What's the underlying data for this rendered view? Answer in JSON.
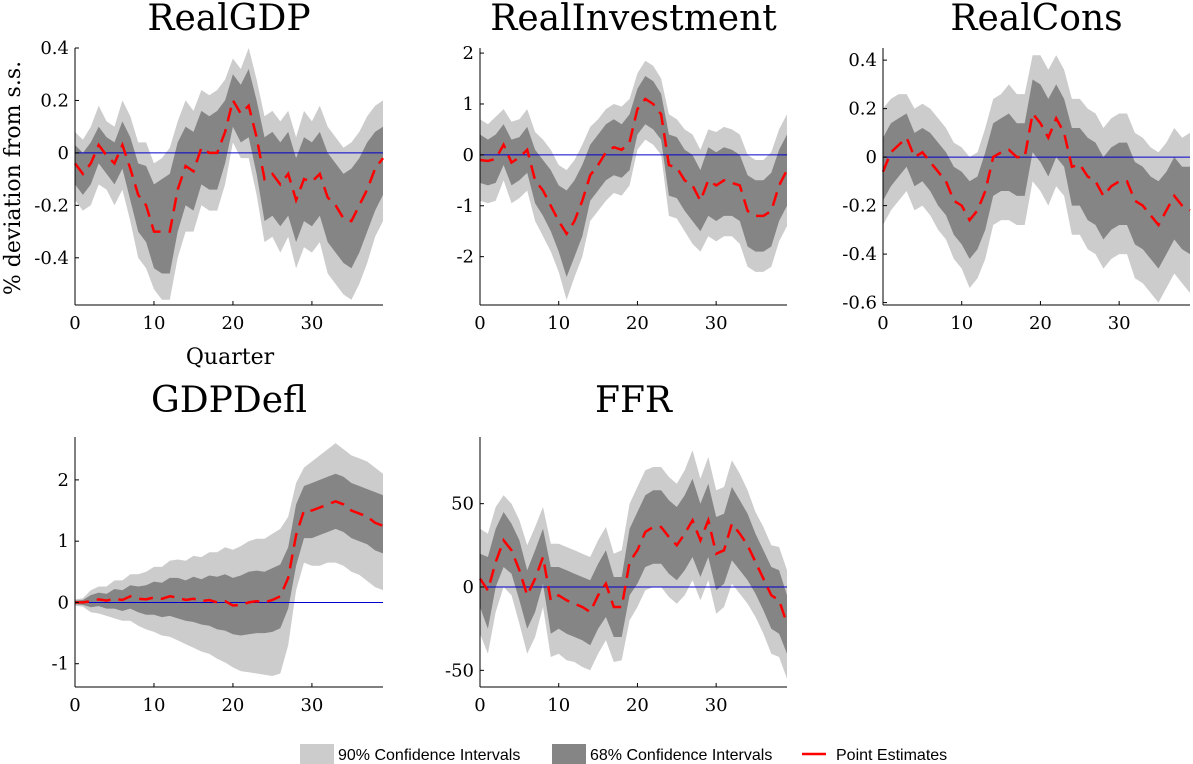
{
  "figure": {
    "ylabel": "% deviation from s.s.",
    "xlabel": "Quarter"
  },
  "legend": {
    "items": [
      {
        "label": "90% Confidence Intervals",
        "color": "#cccccc"
      },
      {
        "label": "68% Confidence Intervals",
        "color": "#858585"
      },
      {
        "label": "Point Estimates",
        "color": "#ff0000"
      }
    ]
  },
  "colors": {
    "band90": "#cccccc",
    "band68": "#858585",
    "point": "#ff0000",
    "zero_line": "#0000cc",
    "axis": "#000000"
  },
  "chart_data": [
    {
      "type": "area",
      "title": "RealGDP",
      "xlim": [
        0,
        39
      ],
      "ylim": [
        -0.58,
        0.4
      ],
      "xticks": [
        0,
        10,
        20,
        30
      ],
      "yticks": [
        0.4,
        0.2,
        0,
        -0.2,
        -0.4
      ],
      "ytick_labels": [
        "0.4",
        "0.2",
        "0",
        "-0.2",
        "-0.4"
      ],
      "x": [
        0,
        1,
        2,
        3,
        4,
        5,
        6,
        7,
        8,
        9,
        10,
        11,
        12,
        13,
        14,
        15,
        16,
        17,
        18,
        19,
        20,
        21,
        22,
        23,
        24,
        25,
        26,
        27,
        28,
        29,
        30,
        31,
        32,
        33,
        34,
        35,
        36,
        37,
        38,
        39
      ],
      "point": [
        -0.04,
        -0.08,
        -0.04,
        0.03,
        -0.01,
        -0.04,
        0.03,
        -0.06,
        -0.16,
        -0.2,
        -0.3,
        -0.3,
        -0.3,
        -0.14,
        -0.05,
        -0.07,
        0.02,
        0.0,
        0.0,
        0.08,
        0.2,
        0.15,
        0.18,
        0.06,
        -0.1,
        -0.08,
        -0.12,
        -0.08,
        -0.18,
        -0.1,
        -0.11,
        -0.08,
        -0.17,
        -0.2,
        -0.25,
        -0.26,
        -0.2,
        -0.14,
        -0.06,
        -0.02
      ],
      "band68_upper": [
        0.03,
        0.0,
        0.04,
        0.1,
        0.06,
        0.04,
        0.12,
        0.06,
        -0.04,
        -0.05,
        -0.12,
        -0.1,
        -0.08,
        0.04,
        0.1,
        0.08,
        0.16,
        0.14,
        0.16,
        0.2,
        0.3,
        0.26,
        0.32,
        0.2,
        0.06,
        0.08,
        0.04,
        0.08,
        -0.02,
        0.06,
        0.04,
        0.08,
        0.0,
        -0.04,
        -0.08,
        -0.06,
        -0.02,
        0.04,
        0.08,
        0.1
      ],
      "band68_lower": [
        -0.12,
        -0.16,
        -0.12,
        -0.04,
        -0.08,
        -0.12,
        -0.06,
        -0.18,
        -0.3,
        -0.34,
        -0.44,
        -0.46,
        -0.46,
        -0.3,
        -0.2,
        -0.22,
        -0.12,
        -0.14,
        -0.14,
        -0.04,
        0.1,
        0.04,
        0.06,
        -0.08,
        -0.26,
        -0.24,
        -0.28,
        -0.24,
        -0.34,
        -0.26,
        -0.28,
        -0.24,
        -0.34,
        -0.38,
        -0.42,
        -0.44,
        -0.38,
        -0.3,
        -0.22,
        -0.16
      ],
      "band90_upper": [
        0.08,
        0.05,
        0.1,
        0.18,
        0.12,
        0.1,
        0.2,
        0.14,
        0.04,
        0.04,
        -0.04,
        -0.02,
        0.02,
        0.12,
        0.2,
        0.16,
        0.24,
        0.22,
        0.24,
        0.28,
        0.36,
        0.32,
        0.4,
        0.28,
        0.14,
        0.16,
        0.12,
        0.16,
        0.06,
        0.16,
        0.12,
        0.18,
        0.1,
        0.06,
        0.02,
        0.04,
        0.08,
        0.14,
        0.18,
        0.2
      ],
      "band90_lower": [
        -0.18,
        -0.22,
        -0.2,
        -0.12,
        -0.14,
        -0.2,
        -0.14,
        -0.26,
        -0.4,
        -0.44,
        -0.52,
        -0.56,
        -0.56,
        -0.4,
        -0.3,
        -0.3,
        -0.2,
        -0.22,
        -0.22,
        -0.12,
        0.04,
        -0.02,
        -0.02,
        -0.16,
        -0.34,
        -0.32,
        -0.38,
        -0.32,
        -0.44,
        -0.36,
        -0.38,
        -0.34,
        -0.46,
        -0.5,
        -0.54,
        -0.56,
        -0.5,
        -0.42,
        -0.32,
        -0.26
      ]
    },
    {
      "type": "area",
      "title": "RealInvestment",
      "xlim": [
        0,
        39
      ],
      "ylim": [
        -2.95,
        2.1
      ],
      "xticks": [
        0,
        10,
        20,
        30
      ],
      "yticks": [
        2,
        1,
        0,
        -1,
        -2
      ],
      "ytick_labels": [
        "2",
        "1",
        "0",
        "-1",
        "-2"
      ],
      "x": [
        0,
        1,
        2,
        3,
        4,
        5,
        6,
        7,
        8,
        9,
        10,
        11,
        12,
        13,
        14,
        15,
        16,
        17,
        18,
        19,
        20,
        21,
        22,
        23,
        24,
        25,
        26,
        27,
        28,
        29,
        30,
        31,
        32,
        33,
        34,
        35,
        36,
        37,
        38,
        39
      ],
      "point": [
        -0.1,
        -0.12,
        -0.08,
        0.2,
        -0.15,
        -0.05,
        0.1,
        -0.5,
        -0.7,
        -1.0,
        -1.3,
        -1.55,
        -1.3,
        -0.9,
        -0.4,
        -0.2,
        0.05,
        0.15,
        0.1,
        0.25,
        0.9,
        1.1,
        1.0,
        0.8,
        -0.2,
        -0.25,
        -0.5,
        -0.6,
        -0.9,
        -0.5,
        -0.6,
        -0.5,
        -0.55,
        -0.6,
        -1.1,
        -1.2,
        -1.2,
        -1.1,
        -0.6,
        -0.3
      ],
      "band68_upper": [
        0.4,
        0.3,
        0.4,
        0.6,
        0.3,
        0.35,
        0.55,
        0.1,
        -0.1,
        -0.3,
        -0.6,
        -0.7,
        -0.5,
        -0.2,
        0.2,
        0.4,
        0.6,
        0.7,
        0.6,
        0.8,
        1.3,
        1.55,
        1.45,
        1.2,
        0.4,
        0.35,
        0.1,
        0.0,
        -0.3,
        0.15,
        0.05,
        0.15,
        0.1,
        0.0,
        -0.4,
        -0.5,
        -0.5,
        -0.35,
        0.1,
        0.4
      ],
      "band68_lower": [
        -0.55,
        -0.6,
        -0.55,
        -0.2,
        -0.6,
        -0.5,
        -0.35,
        -0.95,
        -1.2,
        -1.5,
        -1.9,
        -2.4,
        -2.0,
        -1.6,
        -0.9,
        -0.7,
        -0.5,
        -0.4,
        -0.45,
        -0.3,
        0.4,
        0.6,
        0.5,
        0.3,
        -0.8,
        -0.85,
        -1.1,
        -1.3,
        -1.5,
        -1.2,
        -1.3,
        -1.2,
        -1.2,
        -1.3,
        -1.8,
        -1.9,
        -1.9,
        -1.8,
        -1.3,
        -1.0
      ],
      "band90_upper": [
        0.7,
        0.6,
        0.75,
        0.9,
        0.65,
        0.7,
        0.9,
        0.45,
        0.3,
        0.1,
        -0.2,
        -0.3,
        -0.1,
        0.2,
        0.55,
        0.7,
        0.9,
        1.0,
        0.95,
        1.1,
        1.6,
        1.85,
        1.75,
        1.5,
        0.8,
        0.7,
        0.5,
        0.4,
        0.1,
        0.5,
        0.45,
        0.55,
        0.5,
        0.4,
        0.0,
        -0.1,
        -0.1,
        0.05,
        0.5,
        0.8
      ],
      "band90_lower": [
        -0.9,
        -0.95,
        -0.9,
        -0.5,
        -0.95,
        -0.85,
        -0.7,
        -1.3,
        -1.6,
        -1.9,
        -2.3,
        -2.85,
        -2.4,
        -2.0,
        -1.3,
        -1.1,
        -0.9,
        -0.75,
        -0.8,
        -0.6,
        0.1,
        0.3,
        0.2,
        0.0,
        -1.2,
        -1.25,
        -1.5,
        -1.75,
        -1.9,
        -1.6,
        -1.7,
        -1.6,
        -1.6,
        -1.75,
        -2.2,
        -2.3,
        -2.3,
        -2.2,
        -1.7,
        -1.4
      ]
    },
    {
      "type": "area",
      "title": "RealCons",
      "xlim": [
        0,
        39
      ],
      "ylim": [
        -0.61,
        0.45
      ],
      "xticks": [
        0,
        10,
        20,
        30
      ],
      "yticks": [
        0.4,
        0.2,
        0,
        -0.2,
        -0.4,
        -0.6
      ],
      "ytick_labels": [
        "0.4",
        "0.2",
        "0",
        "-0.2",
        "-0.4",
        "-0.6"
      ],
      "x": [
        0,
        1,
        2,
        3,
        4,
        5,
        6,
        7,
        8,
        9,
        10,
        11,
        12,
        13,
        14,
        15,
        16,
        17,
        18,
        19,
        20,
        21,
        22,
        23,
        24,
        25,
        26,
        27,
        28,
        29,
        30,
        31,
        32,
        33,
        34,
        35,
        36,
        37,
        38,
        39
      ],
      "point": [
        -0.06,
        0.02,
        0.05,
        0.08,
        0.0,
        0.02,
        -0.02,
        -0.06,
        -0.1,
        -0.18,
        -0.2,
        -0.26,
        -0.22,
        -0.14,
        0.0,
        0.02,
        0.03,
        0.0,
        0.0,
        0.18,
        0.14,
        0.08,
        0.16,
        0.1,
        -0.04,
        -0.03,
        -0.08,
        -0.1,
        -0.16,
        -0.12,
        -0.1,
        -0.1,
        -0.18,
        -0.2,
        -0.24,
        -0.28,
        -0.22,
        -0.16,
        -0.2,
        -0.22
      ],
      "band68_upper": [
        0.08,
        0.14,
        0.16,
        0.18,
        0.1,
        0.12,
        0.1,
        0.06,
        0.02,
        -0.04,
        -0.06,
        -0.1,
        -0.08,
        0.02,
        0.14,
        0.16,
        0.18,
        0.14,
        0.14,
        0.32,
        0.3,
        0.24,
        0.3,
        0.24,
        0.12,
        0.12,
        0.08,
        0.06,
        0.0,
        0.04,
        0.06,
        0.06,
        -0.02,
        -0.04,
        -0.08,
        -0.1,
        -0.06,
        0.0,
        -0.04,
        -0.04
      ],
      "band68_lower": [
        -0.18,
        -0.12,
        -0.08,
        -0.04,
        -0.12,
        -0.1,
        -0.14,
        -0.2,
        -0.24,
        -0.32,
        -0.36,
        -0.42,
        -0.38,
        -0.3,
        -0.16,
        -0.14,
        -0.14,
        -0.16,
        -0.16,
        0.02,
        -0.02,
        -0.08,
        0.0,
        -0.04,
        -0.2,
        -0.2,
        -0.26,
        -0.28,
        -0.34,
        -0.3,
        -0.28,
        -0.28,
        -0.36,
        -0.38,
        -0.42,
        -0.46,
        -0.4,
        -0.34,
        -0.38,
        -0.4
      ],
      "band90_upper": [
        0.2,
        0.24,
        0.26,
        0.26,
        0.2,
        0.22,
        0.2,
        0.16,
        0.12,
        0.06,
        0.04,
        0.0,
        0.02,
        0.12,
        0.24,
        0.26,
        0.3,
        0.26,
        0.26,
        0.42,
        0.42,
        0.36,
        0.42,
        0.36,
        0.24,
        0.24,
        0.2,
        0.18,
        0.12,
        0.16,
        0.18,
        0.18,
        0.1,
        0.08,
        0.04,
        0.02,
        0.06,
        0.12,
        0.08,
        0.1
      ],
      "band90_lower": [
        -0.28,
        -0.22,
        -0.18,
        -0.14,
        -0.22,
        -0.2,
        -0.24,
        -0.3,
        -0.34,
        -0.42,
        -0.46,
        -0.54,
        -0.5,
        -0.42,
        -0.28,
        -0.26,
        -0.26,
        -0.28,
        -0.28,
        -0.1,
        -0.14,
        -0.2,
        -0.12,
        -0.16,
        -0.32,
        -0.32,
        -0.38,
        -0.4,
        -0.46,
        -0.42,
        -0.4,
        -0.4,
        -0.5,
        -0.52,
        -0.56,
        -0.6,
        -0.54,
        -0.48,
        -0.52,
        -0.56
      ]
    },
    {
      "type": "area",
      "title": "GDPDefl",
      "xlim": [
        0,
        39
      ],
      "ylim": [
        -1.38,
        2.7
      ],
      "xticks": [
        0,
        10,
        20,
        30
      ],
      "yticks": [
        2,
        1,
        0,
        -1
      ],
      "ytick_labels": [
        "2",
        "1",
        "0",
        "-1"
      ],
      "x": [
        0,
        1,
        2,
        3,
        4,
        5,
        6,
        7,
        8,
        9,
        10,
        11,
        12,
        13,
        14,
        15,
        16,
        17,
        18,
        19,
        20,
        21,
        22,
        23,
        24,
        25,
        26,
        27,
        28,
        29,
        30,
        31,
        32,
        33,
        34,
        35,
        36,
        37,
        38,
        39
      ],
      "point": [
        0.0,
        0.0,
        0.02,
        0.05,
        0.03,
        0.06,
        0.04,
        0.1,
        0.06,
        0.05,
        0.08,
        0.06,
        0.1,
        0.08,
        0.04,
        0.06,
        0.02,
        0.04,
        0.0,
        0.02,
        -0.05,
        -0.04,
        0.0,
        0.02,
        0.0,
        0.04,
        0.1,
        0.4,
        1.1,
        1.5,
        1.5,
        1.55,
        1.6,
        1.65,
        1.6,
        1.5,
        1.45,
        1.4,
        1.3,
        1.25
      ],
      "band68_upper": [
        0.03,
        0.04,
        0.12,
        0.16,
        0.14,
        0.22,
        0.2,
        0.28,
        0.26,
        0.28,
        0.34,
        0.32,
        0.4,
        0.4,
        0.36,
        0.42,
        0.38,
        0.44,
        0.42,
        0.46,
        0.4,
        0.44,
        0.5,
        0.52,
        0.5,
        0.56,
        0.62,
        0.9,
        1.6,
        1.9,
        1.95,
        2.0,
        2.05,
        2.1,
        2.05,
        1.95,
        1.9,
        1.85,
        1.8,
        1.75
      ],
      "band68_lower": [
        -0.03,
        -0.04,
        -0.08,
        -0.06,
        -0.1,
        -0.1,
        -0.14,
        -0.1,
        -0.16,
        -0.2,
        -0.2,
        -0.24,
        -0.22,
        -0.26,
        -0.3,
        -0.32,
        -0.36,
        -0.38,
        -0.44,
        -0.46,
        -0.52,
        -0.54,
        -0.52,
        -0.5,
        -0.5,
        -0.48,
        -0.42,
        -0.1,
        0.6,
        1.05,
        1.05,
        1.1,
        1.15,
        1.2,
        1.15,
        1.05,
        1.0,
        0.95,
        0.85,
        0.8
      ],
      "band90_upper": [
        0.05,
        0.07,
        0.2,
        0.26,
        0.26,
        0.36,
        0.36,
        0.46,
        0.46,
        0.5,
        0.58,
        0.58,
        0.68,
        0.7,
        0.68,
        0.76,
        0.74,
        0.82,
        0.82,
        0.9,
        0.86,
        0.92,
        1.0,
        1.04,
        1.04,
        1.12,
        1.2,
        1.4,
        1.95,
        2.2,
        2.3,
        2.4,
        2.5,
        2.6,
        2.5,
        2.4,
        2.35,
        2.3,
        2.2,
        2.1
      ],
      "band90_lower": [
        -0.05,
        -0.07,
        -0.16,
        -0.18,
        -0.22,
        -0.26,
        -0.3,
        -0.3,
        -0.38,
        -0.44,
        -0.48,
        -0.54,
        -0.56,
        -0.62,
        -0.68,
        -0.74,
        -0.8,
        -0.84,
        -0.92,
        -0.98,
        -1.06,
        -1.12,
        -1.14,
        -1.16,
        -1.18,
        -1.2,
        -1.16,
        -0.7,
        0.2,
        0.65,
        0.6,
        0.6,
        0.65,
        0.65,
        0.6,
        0.5,
        0.45,
        0.35,
        0.25,
        0.2
      ]
    },
    {
      "type": "area",
      "title": "FFR",
      "xlim": [
        0,
        39
      ],
      "ylim": [
        -60,
        90
      ],
      "xticks": [
        0,
        10,
        20,
        30
      ],
      "yticks": [
        50,
        0,
        -50
      ],
      "ytick_labels": [
        "50",
        "0",
        "-50"
      ],
      "x": [
        0,
        1,
        2,
        3,
        4,
        5,
        6,
        7,
        8,
        9,
        10,
        11,
        12,
        13,
        14,
        15,
        16,
        17,
        18,
        19,
        20,
        21,
        22,
        23,
        24,
        25,
        26,
        27,
        28,
        29,
        30,
        31,
        32,
        33,
        34,
        35,
        36,
        37,
        38,
        39
      ],
      "point": [
        5,
        -2,
        15,
        28,
        22,
        10,
        -5,
        5,
        18,
        -8,
        -5,
        -8,
        -10,
        -12,
        -15,
        -5,
        2,
        -12,
        -12,
        15,
        22,
        33,
        36,
        36,
        30,
        25,
        32,
        40,
        28,
        40,
        20,
        22,
        38,
        32,
        25,
        15,
        5,
        -5,
        -8,
        -22
      ],
      "band68_upper": [
        20,
        18,
        35,
        45,
        38,
        28,
        10,
        22,
        35,
        12,
        12,
        10,
        8,
        6,
        4,
        14,
        22,
        6,
        6,
        35,
        45,
        55,
        58,
        58,
        52,
        48,
        55,
        65,
        50,
        62,
        42,
        44,
        60,
        52,
        44,
        32,
        22,
        12,
        10,
        -5
      ],
      "band68_lower": [
        -12,
        -25,
        0,
        12,
        8,
        -8,
        -25,
        -15,
        2,
        -28,
        -25,
        -28,
        -30,
        -32,
        -35,
        -25,
        -18,
        -30,
        -30,
        -5,
        2,
        12,
        14,
        14,
        8,
        4,
        10,
        18,
        6,
        18,
        -2,
        2,
        16,
        10,
        4,
        -4,
        -14,
        -25,
        -28,
        -40
      ],
      "band90_upper": [
        35,
        32,
        48,
        55,
        50,
        40,
        25,
        36,
        48,
        26,
        26,
        24,
        22,
        20,
        18,
        28,
        36,
        20,
        22,
        50,
        60,
        70,
        72,
        72,
        66,
        62,
        70,
        82,
        65,
        78,
        58,
        60,
        76,
        68,
        58,
        45,
        36,
        25,
        24,
        10
      ],
      "band90_lower": [
        -28,
        -40,
        -15,
        0,
        -5,
        -22,
        -40,
        -30,
        -12,
        -42,
        -40,
        -44,
        -45,
        -48,
        -50,
        -40,
        -32,
        -45,
        -44,
        -20,
        -12,
        -2,
        0,
        0,
        -6,
        -10,
        -5,
        4,
        -8,
        4,
        -16,
        -12,
        2,
        -4,
        -10,
        -18,
        -28,
        -40,
        -42,
        -55
      ]
    }
  ]
}
